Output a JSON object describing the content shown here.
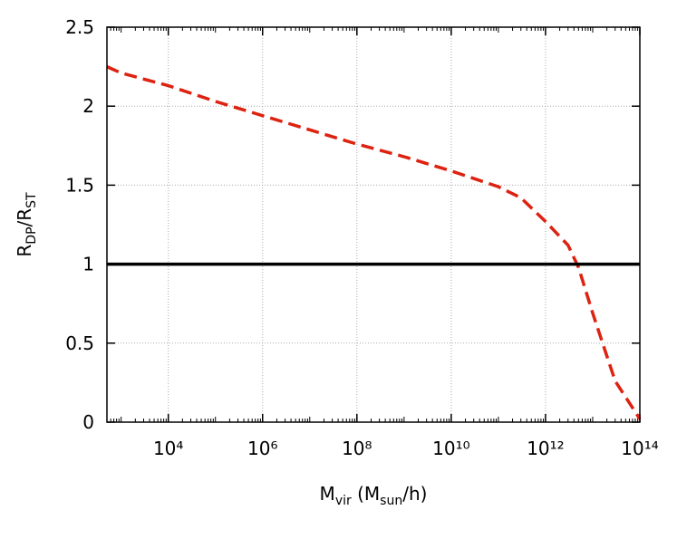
{
  "chart_data": {
    "type": "line",
    "xlabel": [
      "M",
      "vir",
      " (M",
      "sun",
      "/h)"
    ],
    "ylabel": [
      "R",
      "DP",
      "/R",
      "ST"
    ],
    "xscale": "log",
    "xlim": [
      500,
      100000000000000
    ],
    "ylim": [
      0,
      2.5
    ],
    "xticks": [
      {
        "value": 10000,
        "label": "10⁴"
      },
      {
        "value": 1000000,
        "label": "10⁶"
      },
      {
        "value": 100000000,
        "label": "10⁸"
      },
      {
        "value": 10000000000,
        "label": "10¹⁰"
      },
      {
        "value": 1000000000000,
        "label": "10¹²"
      },
      {
        "value": 100000000000000,
        "label": "10¹⁴"
      }
    ],
    "yticks": [
      0,
      0.5,
      1,
      1.5,
      2,
      2.5
    ],
    "grid": true,
    "series": [
      {
        "color": "#dd2211",
        "style": "dashed",
        "x": [
          500,
          1000,
          10000,
          100000,
          1000000,
          10000000,
          100000000,
          1000000000,
          10000000000,
          100000000000,
          300000000000,
          1000000000000,
          3000000000000,
          5000000000000,
          10000000000000,
          30000000000000,
          100000000000000
        ],
        "values": [
          2.25,
          2.21,
          2.13,
          2.03,
          1.94,
          1.85,
          1.76,
          1.68,
          1.59,
          1.49,
          1.42,
          1.27,
          1.12,
          0.98,
          0.69,
          0.26,
          0.02
        ]
      },
      {
        "color": "#000000",
        "style": "solid",
        "x": [
          500,
          100000000000000
        ],
        "values": [
          1,
          1
        ]
      }
    ]
  }
}
